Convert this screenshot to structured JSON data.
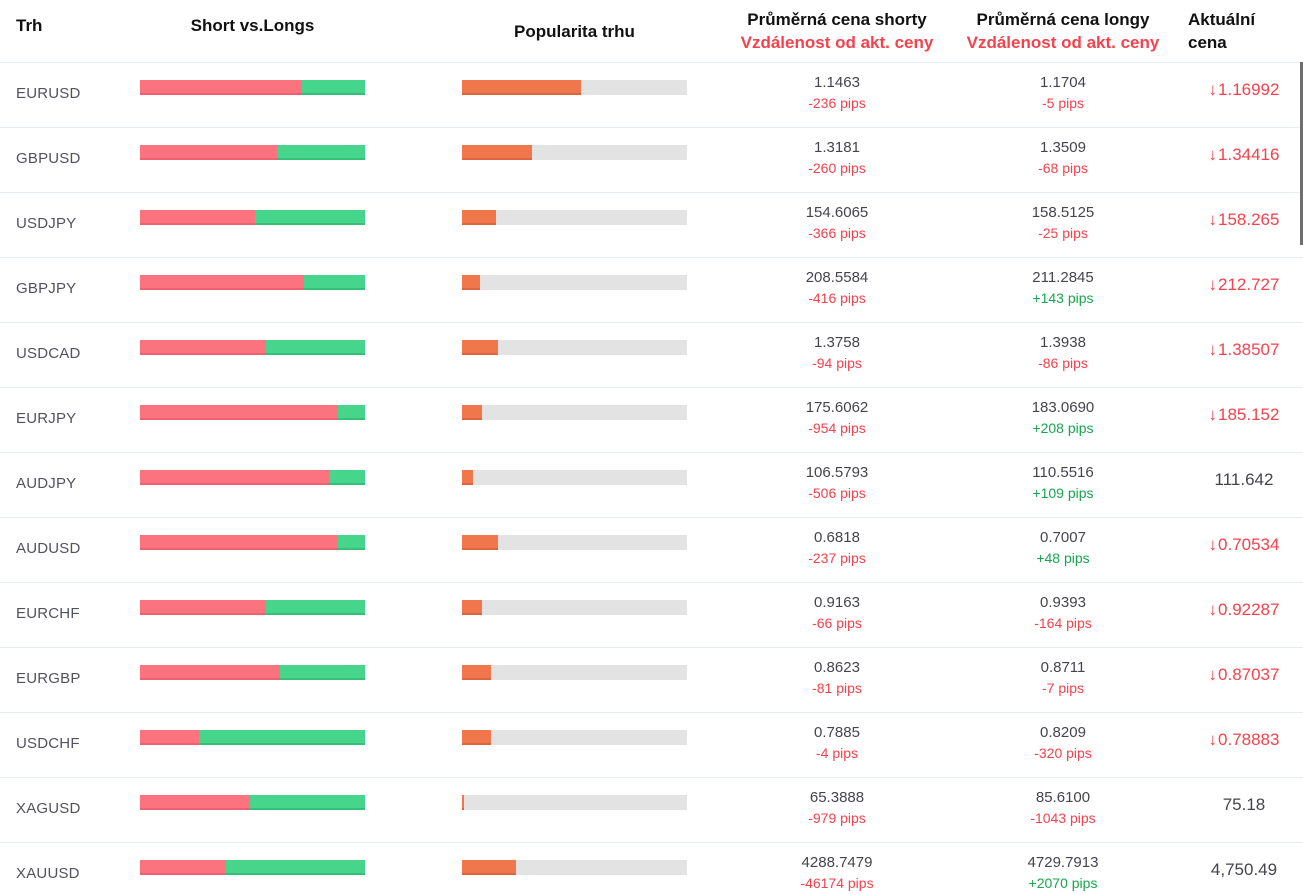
{
  "header": {
    "market": "Trh",
    "short_vs_longs": "Short vs.Longs",
    "popularity": "Popularita trhu",
    "avg_short_line1": "Průměrná cena shorty",
    "avg_short_line2": "Vzdálenost od akt. ceny",
    "avg_long_line1": "Průměrná cena longy",
    "avg_long_line2": "Vzdálenost od akt. ceny",
    "current_line1": "Aktuální",
    "current_line2": "cena"
  },
  "icons": {
    "down_arrow": "↓"
  },
  "colors": {
    "shorts_bar": "#fc7380",
    "longs_bar": "#46d58a",
    "popularity_bar": "#f0764b",
    "popularity_track": "#e3e3e3",
    "negative_text": "#f5424d",
    "positive_text": "#17a64e",
    "header_accent": "#f5424d"
  },
  "rows": [
    {
      "market": "EURUSD",
      "shorts_pct": 72,
      "longs_pct": 28,
      "popularity_pct": 53,
      "short_price": "1.1463",
      "short_dist": "-236 pips",
      "long_price": "1.1704",
      "long_dist": "-5 pips",
      "current": "1.16992",
      "trend": "down"
    },
    {
      "market": "GBPUSD",
      "shorts_pct": 61,
      "longs_pct": 39,
      "popularity_pct": 31,
      "short_price": "1.3181",
      "short_dist": "-260 pips",
      "long_price": "1.3509",
      "long_dist": "-68 pips",
      "current": "1.34416",
      "trend": "down"
    },
    {
      "market": "USDJPY",
      "shorts_pct": 51,
      "longs_pct": 49,
      "popularity_pct": 15,
      "short_price": "154.6065",
      "short_dist": "-366 pips",
      "long_price": "158.5125",
      "long_dist": "-25 pips",
      "current": "158.265",
      "trend": "down"
    },
    {
      "market": "GBPJPY",
      "shorts_pct": 73,
      "longs_pct": 27,
      "popularity_pct": 8,
      "short_price": "208.5584",
      "short_dist": "-416 pips",
      "long_price": "211.2845",
      "long_dist": "+143 pips",
      "current": "212.727",
      "trend": "down"
    },
    {
      "market": "USDCAD",
      "shorts_pct": 56,
      "longs_pct": 44,
      "popularity_pct": 16,
      "short_price": "1.3758",
      "short_dist": "-94 pips",
      "long_price": "1.3938",
      "long_dist": "-86 pips",
      "current": "1.38507",
      "trend": "down"
    },
    {
      "market": "EURJPY",
      "shorts_pct": 88,
      "longs_pct": 12,
      "popularity_pct": 9,
      "short_price": "175.6062",
      "short_dist": "-954 pips",
      "long_price": "183.0690",
      "long_dist": "+208 pips",
      "current": "185.152",
      "trend": "down"
    },
    {
      "market": "AUDJPY",
      "shorts_pct": 84,
      "longs_pct": 16,
      "popularity_pct": 5,
      "short_price": "106.5793",
      "short_dist": "-506 pips",
      "long_price": "110.5516",
      "long_dist": "+109 pips",
      "current": "111.642",
      "trend": "none"
    },
    {
      "market": "AUDUSD",
      "shorts_pct": 88,
      "longs_pct": 12,
      "popularity_pct": 16,
      "short_price": "0.6818",
      "short_dist": "-237 pips",
      "long_price": "0.7007",
      "long_dist": "+48 pips",
      "current": "0.70534",
      "trend": "down"
    },
    {
      "market": "EURCHF",
      "shorts_pct": 56,
      "longs_pct": 44,
      "popularity_pct": 9,
      "short_price": "0.9163",
      "short_dist": "-66 pips",
      "long_price": "0.9393",
      "long_dist": "-164 pips",
      "current": "0.92287",
      "trend": "down"
    },
    {
      "market": "EURGBP",
      "shorts_pct": 62,
      "longs_pct": 38,
      "popularity_pct": 13,
      "short_price": "0.8623",
      "short_dist": "-81 pips",
      "long_price": "0.8711",
      "long_dist": "-7 pips",
      "current": "0.87037",
      "trend": "down"
    },
    {
      "market": "USDCHF",
      "shorts_pct": 26,
      "longs_pct": 74,
      "popularity_pct": 13,
      "short_price": "0.7885",
      "short_dist": "-4 pips",
      "long_price": "0.8209",
      "long_dist": "-320 pips",
      "current": "0.78883",
      "trend": "down"
    },
    {
      "market": "XAGUSD",
      "shorts_pct": 49,
      "longs_pct": 51,
      "popularity_pct": 1,
      "short_price": "65.3888",
      "short_dist": "-979 pips",
      "long_price": "85.6100",
      "long_dist": "-1043 pips",
      "current": "75.18",
      "trend": "none"
    },
    {
      "market": "XAUUSD",
      "shorts_pct": 38,
      "longs_pct": 62,
      "popularity_pct": 24,
      "short_price": "4288.7479",
      "short_dist": "-46174 pips",
      "long_price": "4729.7913",
      "long_dist": "+2070 pips",
      "current": "4,750.49",
      "trend": "none"
    }
  ]
}
